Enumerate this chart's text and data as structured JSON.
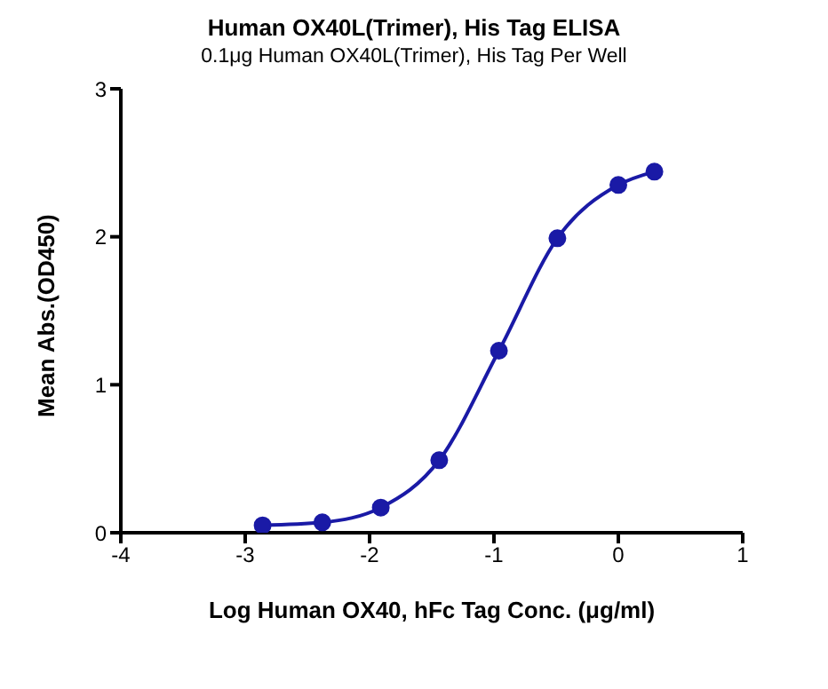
{
  "chart_data": {
    "type": "line",
    "title": "Human OX40L(Trimer),  His Tag ELISA",
    "subtitle": "0.1μg Human OX40L(Trimer), His Tag Per Well",
    "xlabel": "Log Human OX40, hFc Tag Conc. (μg/ml)",
    "ylabel": "Mean Abs.(OD450)",
    "x": [
      -2.86,
      -2.38,
      -1.91,
      -1.44,
      -0.96,
      -0.49,
      0.0,
      0.29
    ],
    "series": [
      {
        "color": "#1a1aa6",
        "values": [
          0.05,
          0.07,
          0.17,
          0.49,
          1.23,
          1.99,
          2.35,
          2.44
        ]
      }
    ],
    "xlim": [
      -4,
      1
    ],
    "xticks": [
      -4,
      -3,
      -2,
      -1,
      0,
      1
    ],
    "ylim": [
      0,
      3
    ],
    "yticks": [
      0,
      1,
      2,
      3
    ],
    "grid": false,
    "legend": false,
    "marker": "circle",
    "line_style": "solid"
  }
}
